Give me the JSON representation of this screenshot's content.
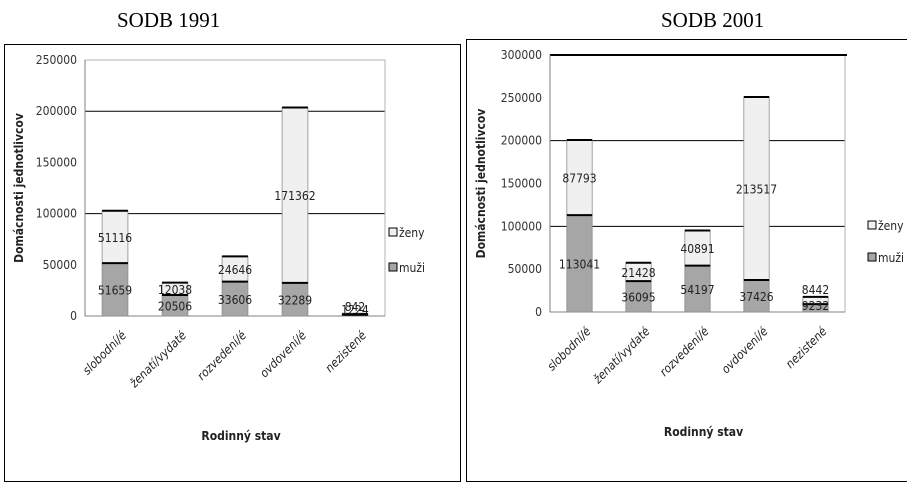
{
  "colors": {
    "muzi": "#a6a6a6",
    "zeny": "#f0f0f0",
    "outline": "#000000",
    "grid": "#000000"
  },
  "chart_data": [
    {
      "type": "bar",
      "stacked": true,
      "title": "SODB 1991",
      "xlabel": "Rodinný stav",
      "ylabel": "Domácnosti jednotlivcov",
      "ylim": [
        0,
        250000
      ],
      "yticks": [
        "0",
        "50000",
        "100000",
        "150000",
        "200000",
        "250000"
      ],
      "categories": [
        "slobodní/é",
        "ženatí/vydaté",
        "rozvedení/é",
        "ovdovení/é",
        "nezistené"
      ],
      "series": [
        {
          "name": "muži",
          "values": [
            51659,
            20506,
            33606,
            32289,
            1224
          ],
          "labels": [
            "51659",
            "20506",
            "33606",
            "32289",
            "1224"
          ]
        },
        {
          "name": "ženy",
          "values": [
            51116,
            12038,
            24646,
            171362,
            842
          ],
          "labels": [
            "51116",
            "12038",
            "24646",
            "171362",
            "842"
          ]
        }
      ],
      "legend": [
        "ženy",
        "muži"
      ],
      "legend_position": "right",
      "grid": true
    },
    {
      "type": "bar",
      "stacked": true,
      "title": "SODB 2001",
      "xlabel": "Rodinný stav",
      "ylabel": "Domácnosti jednotlivcov",
      "ylim": [
        0,
        300000
      ],
      "yticks": [
        "0",
        "50000",
        "100000",
        "150000",
        "200000",
        "250000",
        "300000"
      ],
      "categories": [
        "slobodní/é",
        "ženatí/vydaté",
        "rozvedení/é",
        "ovdovení/é",
        "nezistené"
      ],
      "series": [
        {
          "name": "muži",
          "values": [
            113041,
            36095,
            54197,
            37426,
            9232
          ],
          "labels": [
            "113041",
            "36095",
            "54197",
            "37426",
            "9232"
          ]
        },
        {
          "name": "ženy",
          "values": [
            87793,
            21428,
            40891,
            213517,
            8442
          ],
          "labels": [
            "87793",
            "21428",
            "40891",
            "213517",
            "8442"
          ]
        }
      ],
      "legend": [
        "ženy",
        "muži"
      ],
      "legend_position": "right",
      "grid": true
    }
  ]
}
